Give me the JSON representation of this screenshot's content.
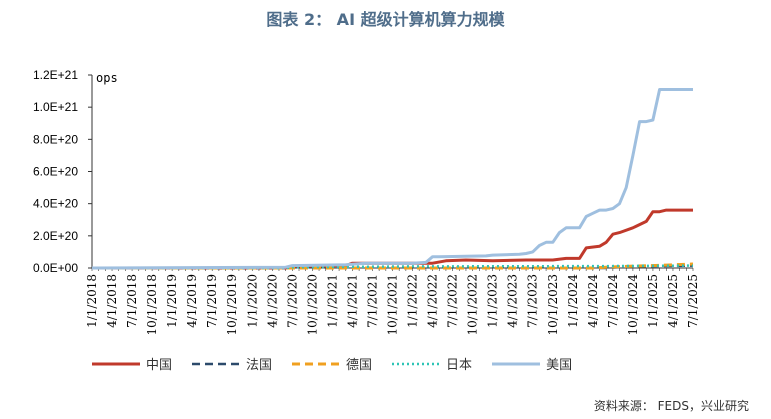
{
  "title": "图表 2： AI 超级计算机算力规模",
  "source": "资料来源：   FEDS，兴业研究",
  "chart_data": {
    "type": "line",
    "unit_label": "ops",
    "ylim": [
      0,
      1.2e+21
    ],
    "yticks": [
      {
        "value": 0,
        "label": "0.0E+00"
      },
      {
        "value": 2e+20,
        "label": "2.0E+20"
      },
      {
        "value": 4e+20,
        "label": "4.0E+20"
      },
      {
        "value": 6e+20,
        "label": "6.0E+20"
      },
      {
        "value": 8e+20,
        "label": "8.0E+20"
      },
      {
        "value": 1e+21,
        "label": "1.0E+21"
      },
      {
        "value": 1.2e+21,
        "label": "1.2E+21"
      }
    ],
    "x_start": "2018-01",
    "x_end": "2025-07",
    "xtick_labels": [
      "1/1/2018",
      "4/1/2018",
      "7/1/2018",
      "10/1/2018",
      "1/1/2019",
      "4/1/2019",
      "7/1/2019",
      "10/1/2019",
      "1/1/2020",
      "4/1/2020",
      "7/1/2020",
      "10/1/2020",
      "1/1/2021",
      "4/1/2021",
      "7/1/2021",
      "10/1/2021",
      "1/1/2022",
      "4/1/2022",
      "7/1/2022",
      "10/1/2022",
      "1/1/2023",
      "4/1/2023",
      "7/1/2023",
      "10/1/2023",
      "1/1/2024",
      "4/1/2024",
      "7/1/2024",
      "10/1/2024",
      "1/1/2025",
      "4/1/2025",
      "7/1/2025"
    ],
    "grid": false,
    "legend_position": "bottom",
    "series": [
      {
        "name": "中国",
        "color": "#c0392b",
        "style": "solid",
        "width": 3,
        "points": [
          [
            "2018-01",
            0
          ],
          [
            "2020-06",
            0
          ],
          [
            "2020-07",
            1e+19
          ],
          [
            "2021-03",
            1.5e+19
          ],
          [
            "2021-04",
            3e+19
          ],
          [
            "2022-03",
            3e+19
          ],
          [
            "2022-04",
            3e+19
          ],
          [
            "2022-06",
            4.5e+19
          ],
          [
            "2022-09",
            5e+19
          ],
          [
            "2023-01",
            4.5e+19
          ],
          [
            "2023-06",
            5e+19
          ],
          [
            "2023-10",
            5e+19
          ],
          [
            "2023-12",
            6e+19
          ],
          [
            "2024-01",
            6e+19
          ],
          [
            "2024-02",
            6e+19
          ],
          [
            "2024-03",
            1.25e+20
          ],
          [
            "2024-05",
            1.35e+20
          ],
          [
            "2024-06",
            1.6e+20
          ],
          [
            "2024-07",
            2.1e+20
          ],
          [
            "2024-08",
            2.2e+20
          ],
          [
            "2024-10",
            2.5e+20
          ],
          [
            "2024-12",
            2.9e+20
          ],
          [
            "2025-01",
            3.5e+20
          ],
          [
            "2025-02",
            3.5e+20
          ],
          [
            "2025-03",
            3.6e+20
          ],
          [
            "2025-07",
            3.6e+20
          ]
        ]
      },
      {
        "name": "法国",
        "color": "#2c4a6b",
        "style": "dash",
        "width": 2.5,
        "points": [
          [
            "2018-01",
            0
          ],
          [
            "2024-06",
            0
          ],
          [
            "2024-10",
            1e+19
          ],
          [
            "2025-07",
            1.5e+19
          ]
        ]
      },
      {
        "name": "德国",
        "color": "#f0a020",
        "style": "dash",
        "width": 3,
        "points": [
          [
            "2018-01",
            0
          ],
          [
            "2024-04",
            0
          ],
          [
            "2024-06",
            5e+18
          ],
          [
            "2024-09",
            1e+19
          ],
          [
            "2025-03",
            1.8e+19
          ],
          [
            "2025-07",
            2.5e+19
          ]
        ]
      },
      {
        "name": "日本",
        "color": "#2ec4b6",
        "style": "dot",
        "width": 2.5,
        "points": [
          [
            "2018-01",
            0
          ],
          [
            "2020-06",
            0
          ],
          [
            "2020-07",
            5e+18
          ],
          [
            "2022-01",
            1e+19
          ],
          [
            "2024-06",
            1.2e+19
          ],
          [
            "2025-07",
            1.5e+19
          ]
        ]
      },
      {
        "name": "美国",
        "color": "#9fbfdf",
        "style": "solid",
        "width": 3,
        "points": [
          [
            "2018-01",
            0
          ],
          [
            "2020-06",
            5e+18
          ],
          [
            "2020-07",
            1.5e+19
          ],
          [
            "2021-03",
            2e+19
          ],
          [
            "2021-06",
            3e+19
          ],
          [
            "2022-01",
            3e+19
          ],
          [
            "2022-03",
            3.5e+19
          ],
          [
            "2022-04",
            7e+19
          ],
          [
            "2022-05",
            7e+19
          ],
          [
            "2022-12",
            7.5e+19
          ],
          [
            "2023-01",
            8e+19
          ],
          [
            "2023-05",
            8.5e+19
          ],
          [
            "2023-06",
            9e+19
          ],
          [
            "2023-07",
            1e+20
          ],
          [
            "2023-08",
            1.4e+20
          ],
          [
            "2023-09",
            1.6e+20
          ],
          [
            "2023-10",
            1.6e+20
          ],
          [
            "2023-11",
            2.2e+20
          ],
          [
            "2023-12",
            2.5e+20
          ],
          [
            "2024-01",
            2.5e+20
          ],
          [
            "2024-02",
            2.5e+20
          ],
          [
            "2024-03",
            3.2e+20
          ],
          [
            "2024-04",
            3.4e+20
          ],
          [
            "2024-05",
            3.6e+20
          ],
          [
            "2024-06",
            3.6e+20
          ],
          [
            "2024-07",
            3.7e+20
          ],
          [
            "2024-08",
            4e+20
          ],
          [
            "2024-09",
            5e+20
          ],
          [
            "2024-10",
            7e+20
          ],
          [
            "2024-11",
            9.1e+20
          ],
          [
            "2024-12",
            9.1e+20
          ],
          [
            "2025-01",
            9.2e+20
          ],
          [
            "2025-02",
            1.11e+21
          ],
          [
            "2025-07",
            1.11e+21
          ]
        ]
      }
    ]
  }
}
